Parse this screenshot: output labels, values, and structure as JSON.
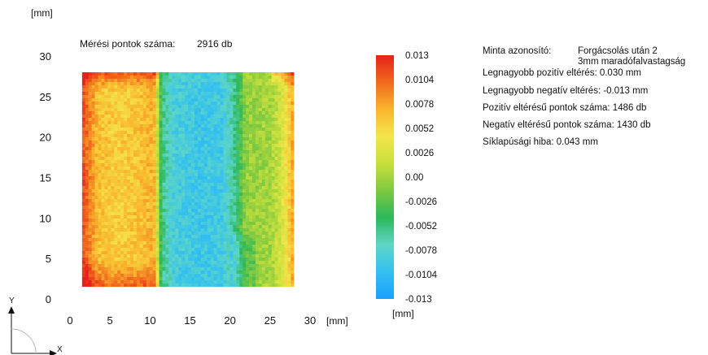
{
  "chart_data": {
    "type": "heatmap",
    "y_unit": "[mm]",
    "x_unit": "[mm]",
    "x_ticks": [
      0,
      5,
      10,
      15,
      20,
      25,
      30
    ],
    "y_ticks": [
      0,
      5,
      10,
      15,
      20,
      25,
      30
    ],
    "xlim": [
      0,
      30
    ],
    "ylim": [
      0,
      30
    ],
    "plate_extent": {
      "x": [
        1.5,
        28
      ],
      "y": [
        1.5,
        28
      ]
    },
    "measurement_label": "Mérési pontok száma:",
    "measurement_value": "2916 db",
    "colorbar": {
      "ticks": [
        "0.013",
        "0.0104",
        "0.0078",
        "0.0052",
        "0.0026",
        "0.00",
        "-0.0026",
        "-0.0052",
        "-0.0078",
        "-0.0104",
        "-0.013"
      ],
      "min": -0.013,
      "max": 0.013,
      "unit": "[mm]",
      "colors": [
        "#1aa0ff",
        "#33c0f0",
        "#5ed6c6",
        "#2cb85a",
        "#7dc942",
        "#c8df3c",
        "#f4e64a",
        "#f9b52d",
        "#f06a1e",
        "#e8211c"
      ]
    },
    "deviation_profile_x": [
      {
        "x": 1.5,
        "v": 0.0115
      },
      {
        "x": 3.5,
        "v": 0.0065
      },
      {
        "x": 6.0,
        "v": 0.0058
      },
      {
        "x": 8.5,
        "v": 0.0063
      },
      {
        "x": 10.5,
        "v": 0.0072
      },
      {
        "x": 11.5,
        "v": -0.0055
      },
      {
        "x": 13.0,
        "v": -0.0085
      },
      {
        "x": 16.0,
        "v": -0.0092
      },
      {
        "x": 19.0,
        "v": -0.009
      },
      {
        "x": 20.5,
        "v": -0.006
      },
      {
        "x": 22.0,
        "v": -0.0005
      },
      {
        "x": 25.0,
        "v": 0.0
      },
      {
        "x": 26.5,
        "v": 0.0025
      },
      {
        "x": 28.0,
        "v": 0.008
      }
    ],
    "axis_labels": {
      "x": "X",
      "y": "Y"
    }
  },
  "info": [
    {
      "label": "Minta azonosító:",
      "value": "Forgácsolás után 2",
      "value2": "3mm maradófalvastagság"
    },
    {
      "text": "Legnagyobb pozitív eltérés:  0.030 mm"
    },
    {
      "text": "Legnagyobb negatív eltérés: -0.013 mm"
    },
    {
      "text": "Pozitív eltérésű pontok száma:  1486 db"
    },
    {
      "text": "Negatív eltérésű pontok száma: 1430 db"
    },
    {
      "text": "Síklapúsági hiba:  0.043 mm"
    }
  ]
}
